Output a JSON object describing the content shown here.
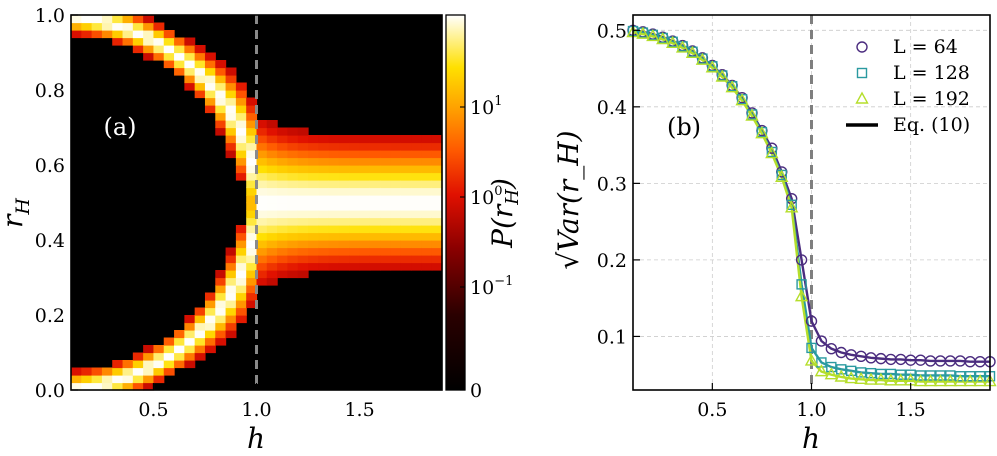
{
  "chart_data": [
    {
      "panel": "(a)",
      "type": "heatmap",
      "description_of_data": "probability density P(r_H) vs h and r_H",
      "xlabel": "h",
      "ylabel": "r_H",
      "xlim": [
        0.1,
        1.9
      ],
      "ylim": [
        0.0,
        1.0
      ],
      "xticks": [
        0.5,
        1.0,
        1.5
      ],
      "xtick_labels": [
        "0.5",
        "1.0",
        "1.5"
      ],
      "yticks": [
        0.0,
        0.2,
        0.4,
        0.6,
        0.8,
        1.0
      ],
      "ytick_labels": [
        "0.0",
        "0.2",
        "0.4",
        "0.6",
        "0.8",
        "1.0"
      ],
      "critical_line_x": 1.0,
      "colorbar": {
        "label": "P(r_H)",
        "scale": "symlog",
        "ticks": [
          {
            "base": "0",
            "exp": ""
          },
          {
            "base": "10",
            "exp": "−1"
          },
          {
            "base": "10",
            "exp": "0"
          },
          {
            "base": "10",
            "exp": "1"
          }
        ],
        "colormap": "hot"
      },
      "annotation": "(a)"
    },
    {
      "panel": "(b)",
      "type": "scatter",
      "xlabel": "h",
      "ylabel": "√Var(r_H)",
      "xlim": [
        0.1,
        1.9
      ],
      "ylim": [
        0.03,
        0.52
      ],
      "xticks": [
        0.5,
        1.0,
        1.5
      ],
      "xtick_labels": [
        "0.5",
        "1.0",
        "1.5"
      ],
      "yticks": [
        0.1,
        0.2,
        0.3,
        0.4,
        0.5
      ],
      "ytick_labels": [
        "0.1",
        "0.2",
        "0.3",
        "0.4",
        "0.5"
      ],
      "critical_line_x": 1.0,
      "grid": true,
      "legend_position": "top-right",
      "annotation": "(b)",
      "x": [
        0.1,
        0.15,
        0.2,
        0.25,
        0.3,
        0.35,
        0.4,
        0.45,
        0.5,
        0.55,
        0.6,
        0.65,
        0.7,
        0.75,
        0.8,
        0.85,
        0.9,
        0.95,
        1.0,
        1.05,
        1.1,
        1.15,
        1.2,
        1.25,
        1.3,
        1.35,
        1.4,
        1.45,
        1.5,
        1.55,
        1.6,
        1.65,
        1.7,
        1.75,
        1.8,
        1.85,
        1.9
      ],
      "series": [
        {
          "name": "L = 64",
          "label_L": "64",
          "marker": "circle",
          "color": "#4b2c7f",
          "values": [
            0.5,
            0.498,
            0.495,
            0.491,
            0.486,
            0.48,
            0.473,
            0.464,
            0.454,
            0.442,
            0.428,
            0.412,
            0.392,
            0.369,
            0.346,
            0.315,
            0.28,
            0.2,
            0.12,
            0.094,
            0.084,
            0.079,
            0.076,
            0.074,
            0.072,
            0.071,
            0.07,
            0.07,
            0.069,
            0.069,
            0.068,
            0.068,
            0.068,
            0.068,
            0.067,
            0.067,
            0.067
          ]
        },
        {
          "name": "L = 128",
          "label_L": "128",
          "marker": "square",
          "color": "#2a9aa0",
          "values": [
            0.499,
            0.497,
            0.494,
            0.49,
            0.485,
            0.479,
            0.472,
            0.463,
            0.453,
            0.441,
            0.427,
            0.41,
            0.39,
            0.367,
            0.341,
            0.311,
            0.272,
            0.168,
            0.085,
            0.066,
            0.06,
            0.057,
            0.055,
            0.053,
            0.052,
            0.051,
            0.051,
            0.05,
            0.05,
            0.049,
            0.049,
            0.049,
            0.049,
            0.048,
            0.048,
            0.048,
            0.048
          ]
        },
        {
          "name": "L = 192",
          "label_L": "192",
          "marker": "triangle",
          "color": "#b5de2b",
          "values": [
            0.497,
            0.495,
            0.492,
            0.488,
            0.483,
            0.477,
            0.47,
            0.461,
            0.451,
            0.439,
            0.425,
            0.408,
            0.388,
            0.365,
            0.339,
            0.308,
            0.268,
            0.152,
            0.068,
            0.054,
            0.05,
            0.047,
            0.045,
            0.044,
            0.043,
            0.043,
            0.042,
            0.042,
            0.042,
            0.041,
            0.041,
            0.041,
            0.041,
            0.041,
            0.041,
            0.041,
            0.041
          ]
        }
      ],
      "theory_curve": {
        "name": "Eq. (10)",
        "color": "#000000"
      }
    }
  ]
}
